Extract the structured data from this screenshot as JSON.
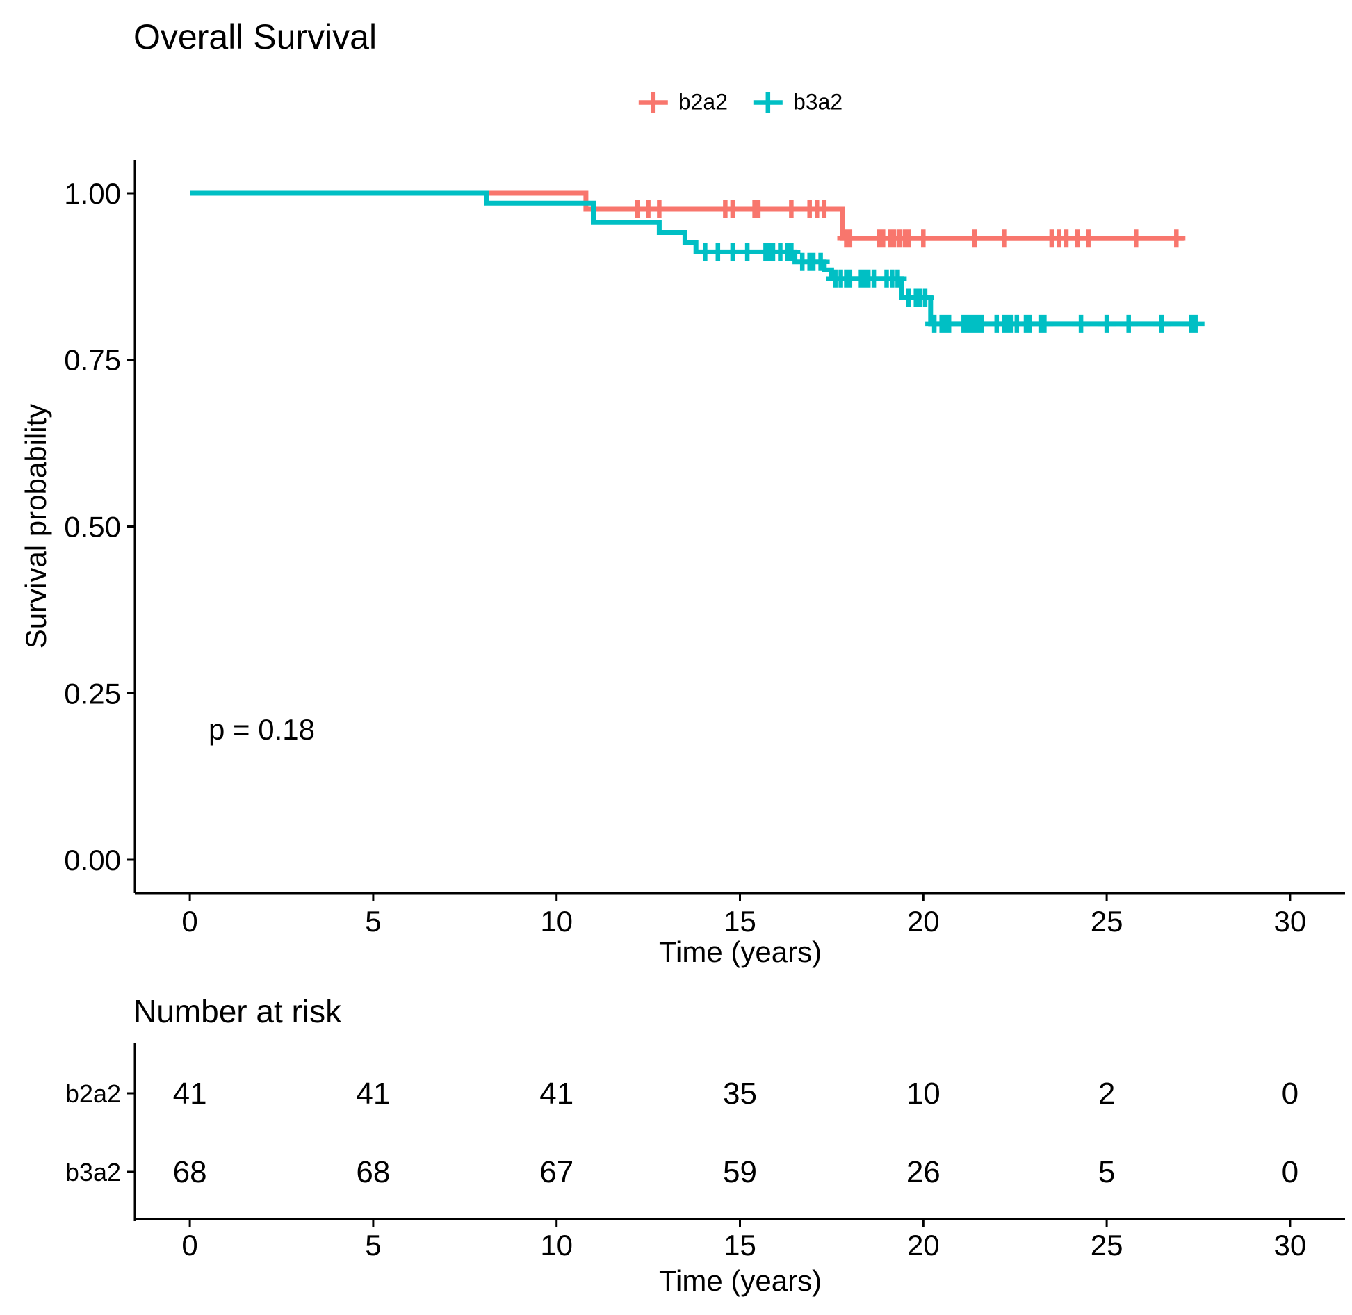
{
  "title": "Overall Survival",
  "p_value_label": "p = 0.18",
  "colors": {
    "group_b2a2": "#F8766D",
    "group_b3a2": "#00BFC4",
    "axis": "#000000",
    "background": "#FFFFFF"
  },
  "legend": {
    "items": [
      {
        "label": "b2a2",
        "color": "#F8766D"
      },
      {
        "label": "b3a2",
        "color": "#00BFC4"
      }
    ]
  },
  "axes": {
    "x_label": "Time (years)",
    "y_label": "Survival probability",
    "x_ticks": [
      "0",
      "5",
      "10",
      "15",
      "20",
      "25",
      "30"
    ],
    "y_ticks": [
      {
        "label": "0.00",
        "value": 0
      },
      {
        "label": "0.25",
        "value": 0.25
      },
      {
        "label": "0.50",
        "value": 0.5
      },
      {
        "label": "0.75",
        "value": 0.75
      },
      {
        "label": "1.00",
        "value": 1
      }
    ],
    "x_range": [
      0,
      30
    ],
    "y_range": [
      0,
      1
    ]
  },
  "chart_data": {
    "type": "line",
    "subtype": "kaplan-meier-step",
    "title": "Overall Survival",
    "xlabel": "Time (years)",
    "ylabel": "Survival probability",
    "xlim": [
      0,
      30
    ],
    "ylim": [
      0,
      1
    ],
    "grid": false,
    "legend_position": "top-center",
    "p_value": 0.18,
    "series": [
      {
        "name": "b2a2",
        "color": "#F8766D",
        "steps": [
          [
            0,
            1.0
          ],
          [
            10.8,
            0.976
          ],
          [
            17.8,
            0.932
          ]
        ],
        "end_time": 27.1,
        "censor_times": [
          [
            12.2,
            0.976
          ],
          [
            12.5,
            0.976
          ],
          [
            12.8,
            0.976
          ],
          [
            14.6,
            0.976
          ],
          [
            14.8,
            0.976
          ],
          [
            15.4,
            0.976
          ],
          [
            15.5,
            0.976
          ],
          [
            16.4,
            0.976
          ],
          [
            16.9,
            0.976
          ],
          [
            17.1,
            0.976
          ],
          [
            17.3,
            0.976
          ],
          [
            17.9,
            0.932
          ],
          [
            18.0,
            0.932
          ],
          [
            18.8,
            0.932
          ],
          [
            18.9,
            0.932
          ],
          [
            19.1,
            0.932
          ],
          [
            19.2,
            0.932
          ],
          [
            19.35,
            0.932
          ],
          [
            19.5,
            0.932
          ],
          [
            19.6,
            0.932
          ],
          [
            20.0,
            0.932
          ],
          [
            21.4,
            0.932
          ],
          [
            22.2,
            0.932
          ],
          [
            23.5,
            0.932
          ],
          [
            23.7,
            0.932
          ],
          [
            23.9,
            0.932
          ],
          [
            24.2,
            0.932
          ],
          [
            24.5,
            0.932
          ],
          [
            25.8,
            0.932
          ],
          [
            26.9,
            0.932
          ]
        ]
      },
      {
        "name": "b3a2",
        "color": "#00BFC4",
        "steps": [
          [
            0,
            1.0
          ],
          [
            8.1,
            0.985
          ],
          [
            11.0,
            0.956
          ],
          [
            12.8,
            0.941
          ],
          [
            13.5,
            0.926
          ],
          [
            13.8,
            0.912
          ],
          [
            16.5,
            0.897
          ],
          [
            17.3,
            0.885
          ],
          [
            17.5,
            0.872
          ],
          [
            19.4,
            0.843
          ],
          [
            20.2,
            0.804
          ]
        ],
        "end_time": 27.5,
        "censor_times": [
          [
            14.05,
            0.912
          ],
          [
            14.4,
            0.912
          ],
          [
            14.8,
            0.912
          ],
          [
            15.2,
            0.912
          ],
          [
            15.7,
            0.912
          ],
          [
            15.8,
            0.912
          ],
          [
            15.9,
            0.912
          ],
          [
            16.1,
            0.912
          ],
          [
            16.3,
            0.912
          ],
          [
            16.4,
            0.912
          ],
          [
            16.7,
            0.897
          ],
          [
            16.9,
            0.897
          ],
          [
            17.0,
            0.897
          ],
          [
            17.2,
            0.897
          ],
          [
            17.6,
            0.872
          ],
          [
            17.75,
            0.872
          ],
          [
            17.9,
            0.872
          ],
          [
            18.0,
            0.872
          ],
          [
            18.3,
            0.872
          ],
          [
            18.4,
            0.872
          ],
          [
            18.5,
            0.872
          ],
          [
            18.65,
            0.872
          ],
          [
            19.0,
            0.872
          ],
          [
            19.15,
            0.872
          ],
          [
            19.3,
            0.872
          ],
          [
            19.6,
            0.843
          ],
          [
            19.8,
            0.843
          ],
          [
            19.9,
            0.843
          ],
          [
            20.05,
            0.843
          ],
          [
            20.3,
            0.804
          ],
          [
            20.5,
            0.804
          ],
          [
            20.6,
            0.804
          ],
          [
            20.7,
            0.804
          ],
          [
            21.1,
            0.804
          ],
          [
            21.2,
            0.804
          ],
          [
            21.3,
            0.804
          ],
          [
            21.4,
            0.804
          ],
          [
            21.5,
            0.804
          ],
          [
            21.6,
            0.804
          ],
          [
            22.0,
            0.804
          ],
          [
            22.2,
            0.804
          ],
          [
            22.3,
            0.804
          ],
          [
            22.4,
            0.804
          ],
          [
            22.55,
            0.804
          ],
          [
            22.8,
            0.804
          ],
          [
            22.9,
            0.804
          ],
          [
            23.2,
            0.804
          ],
          [
            23.3,
            0.804
          ],
          [
            24.3,
            0.804
          ],
          [
            25.0,
            0.804
          ],
          [
            25.6,
            0.804
          ],
          [
            26.5,
            0.804
          ],
          [
            27.3,
            0.804
          ],
          [
            27.42,
            0.804
          ]
        ]
      }
    ]
  },
  "risk_table": {
    "title": "Number at risk",
    "x_label": "Time (years)",
    "x_ticks": [
      "0",
      "5",
      "10",
      "15",
      "20",
      "25",
      "30"
    ],
    "rows": [
      {
        "label": "b2a2",
        "color": "#F8766D",
        "values": [
          "41",
          "41",
          "41",
          "35",
          "10",
          "2",
          "0"
        ]
      },
      {
        "label": "b3a2",
        "color": "#00BFC4",
        "values": [
          "68",
          "68",
          "67",
          "59",
          "26",
          "5",
          "0"
        ]
      }
    ]
  }
}
